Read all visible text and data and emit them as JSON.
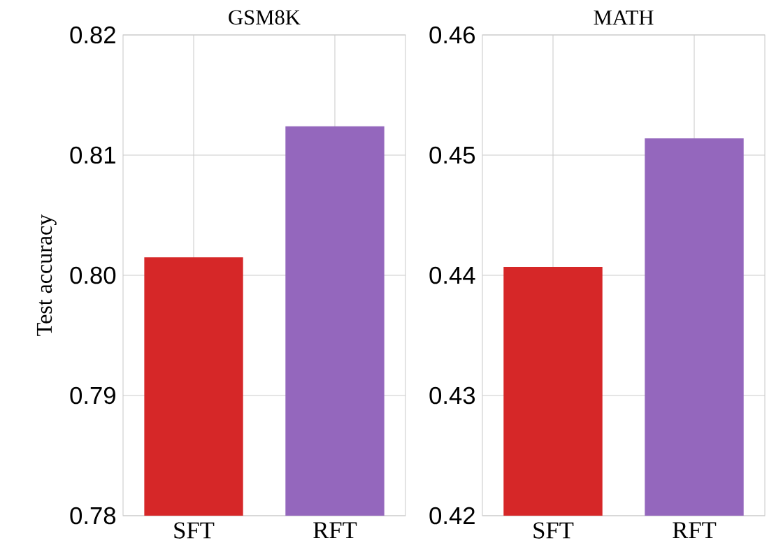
{
  "chart_data": [
    {
      "type": "bar",
      "title": "GSM8K",
      "ylabel": "Test accuracy",
      "categories": [
        "SFT",
        "RFT"
      ],
      "values": [
        0.8015,
        0.8124
      ],
      "colors": [
        "#d62728",
        "#9467bd"
      ],
      "ylim": [
        0.78,
        0.82
      ],
      "yticks": [
        0.78,
        0.79,
        {
          "value": 0.8,
          "label": "0.80"
        },
        0.81,
        0.82
      ],
      "grid": true
    },
    {
      "type": "bar",
      "title": "MATH",
      "categories": [
        "SFT",
        "RFT"
      ],
      "values": [
        0.4407,
        0.4514
      ],
      "colors": [
        "#d62728",
        "#9467bd"
      ],
      "ylim": [
        0.42,
        0.46
      ],
      "yticks": [
        0.42,
        0.43,
        0.44,
        0.45,
        0.46
      ],
      "grid": true
    }
  ]
}
